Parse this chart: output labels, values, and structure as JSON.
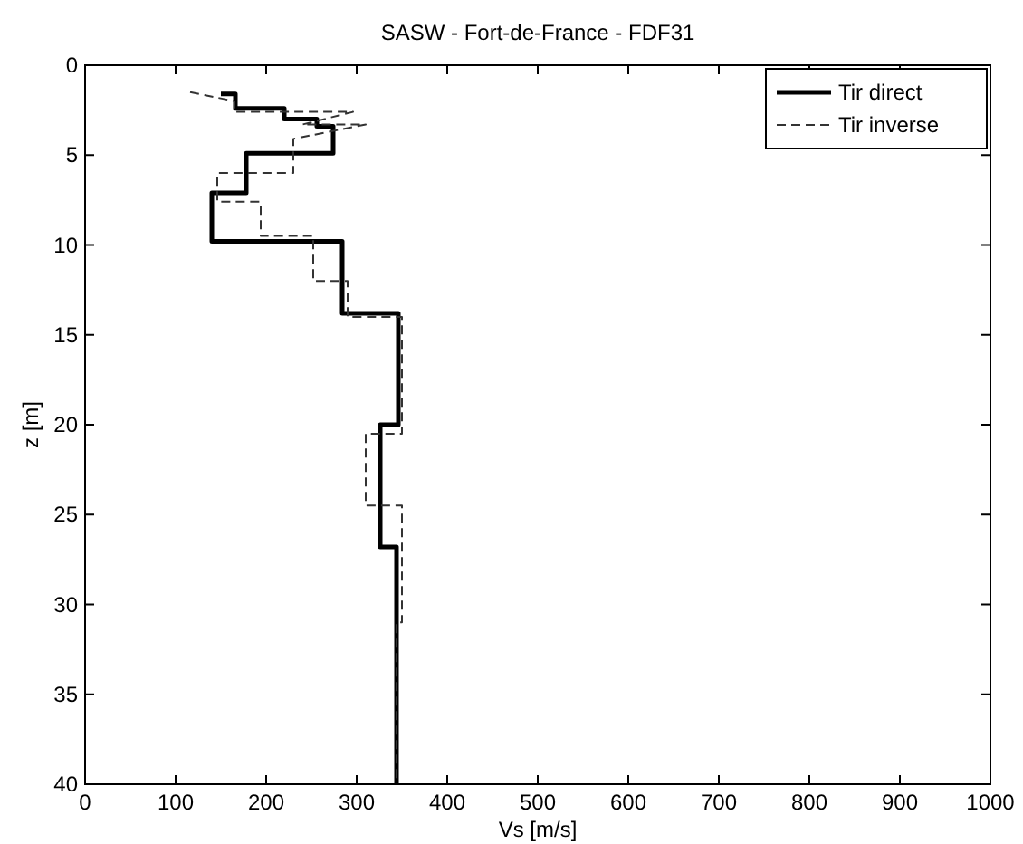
{
  "chart_data": {
    "type": "line",
    "title": "SASW - Fort-de-France - FDF31",
    "xlabel": "Vs [m/s]",
    "ylabel": "z [m]",
    "xlim": [
      0,
      1000
    ],
    "xticks": [
      0,
      100,
      200,
      300,
      400,
      500,
      600,
      700,
      800,
      900,
      1000
    ],
    "ylim": [
      40,
      0
    ],
    "yticks": [
      0,
      5,
      10,
      15,
      20,
      25,
      30,
      35,
      40
    ],
    "grid": false,
    "legend": "top right",
    "marker": "none",
    "series": [
      {
        "name": "Tir direct",
        "color": "#000000",
        "line_style": "solid",
        "x": [
          150,
          166,
          166,
          220,
          220,
          256,
          256,
          274,
          274,
          178,
          178,
          140,
          140,
          284,
          284,
          346,
          346,
          326,
          326,
          344,
          344
        ],
        "values": [
          1.6,
          1.6,
          2.4,
          2.4,
          3.0,
          3.0,
          3.4,
          3.4,
          4.9,
          4.9,
          7.1,
          7.1,
          9.8,
          9.8,
          13.8,
          13.8,
          20.0,
          20.0,
          26.8,
          26.8,
          40
        ]
      },
      {
        "name": "Tir inverse",
        "color": "#333333",
        "line_style": "dashed",
        "x": [
          116,
          165,
          165,
          296,
          240,
          310,
          230,
          230,
          146,
          146,
          194,
          194,
          252,
          252,
          290,
          290,
          350,
          350,
          310,
          310,
          350,
          350,
          344,
          344
        ],
        "values": [
          1.5,
          2.0,
          2.6,
          2.6,
          3.3,
          3.3,
          4.1,
          6.0,
          6.0,
          7.6,
          7.6,
          9.5,
          9.5,
          12,
          12,
          14,
          14,
          20.5,
          20.5,
          24.5,
          24.5,
          31,
          31,
          40
        ]
      }
    ]
  }
}
